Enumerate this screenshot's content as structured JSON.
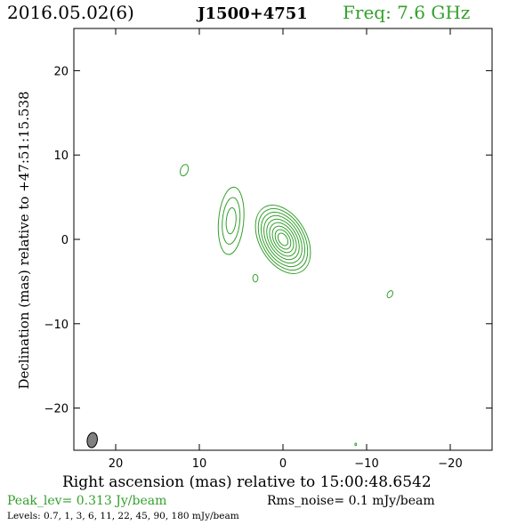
{
  "header": {
    "date": "2016.05.02(6)",
    "source": "J1500+4751",
    "freq": "Freq: 7.6 GHz"
  },
  "colors": {
    "contour": "#33a02c",
    "beam_fill": "#808080",
    "text": "#000000"
  },
  "chart_data": {
    "type": "contour",
    "xlabel": "Right ascension (mas) relative to 15:00:48.6542",
    "ylabel": "Declination (mas) relative to +47:51:15.538",
    "xlim": [
      25,
      -25
    ],
    "ylim": [
      -25,
      25
    ],
    "x_ticks": [
      20,
      10,
      0,
      -10,
      -20
    ],
    "y_ticks": [
      20,
      10,
      0,
      -10,
      -20
    ],
    "peak_level": "Peak_lev=  0.313 Jy/beam",
    "rms_noise": "Rms_noise=  0.1 mJy/beam",
    "levels_text": "Levels: 0.7,    1,    3,    6,   11,   22,   45,   90, 180 mJy/beam",
    "levels_mJy": [
      0.7,
      1,
      3,
      6,
      11,
      22,
      45,
      90,
      180
    ],
    "components": [
      {
        "name": "core",
        "x": 0,
        "y": 0,
        "levels_shown": 9,
        "major": 4.4,
        "minor": 2.8,
        "pa_deg": -30
      },
      {
        "name": "jet",
        "x": 6.2,
        "y": 2.2,
        "levels_shown": 3,
        "major": 4.0,
        "minor": 1.5,
        "pa_deg": 5
      },
      {
        "name": "blob-ne",
        "x": 11.8,
        "y": 8.2,
        "levels_shown": 1,
        "major": 0.7,
        "minor": 0.45,
        "pa_deg": 20
      },
      {
        "name": "blob-s",
        "x": 3.3,
        "y": -4.6,
        "levels_shown": 1,
        "major": 0.45,
        "minor": 0.3,
        "pa_deg": 0
      },
      {
        "name": "blob-sw",
        "x": -12.8,
        "y": -6.5,
        "levels_shown": 1,
        "major": 0.45,
        "minor": 0.3,
        "pa_deg": 30
      },
      {
        "name": "dot-far",
        "x": -8.7,
        "y": -24.3,
        "levels_shown": 1,
        "major": 0.15,
        "minor": 0.1,
        "pa_deg": 0
      }
    ],
    "beam": {
      "x": 22.8,
      "y": -23.8,
      "major": 0.9,
      "minor": 0.6,
      "pa_deg": 10
    }
  }
}
